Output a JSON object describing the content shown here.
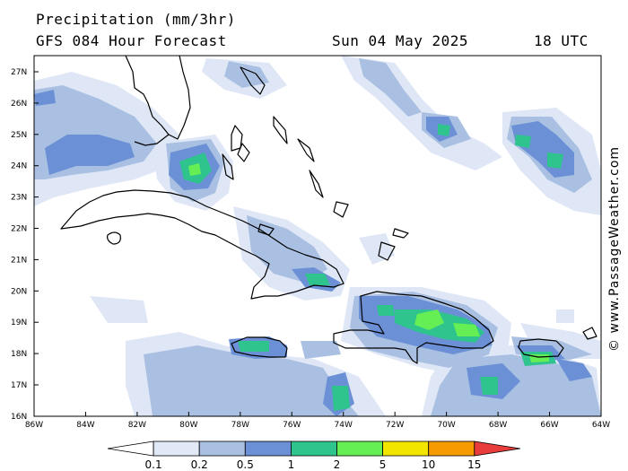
{
  "header": {
    "title": "Precipitation (mm/3hr)",
    "subtitle": "GFS 084 Hour Forecast",
    "date": "Sun 04 May 2025",
    "time": "18 UTC"
  },
  "credit": "© www.PassageWeather.com",
  "axes": {
    "lat_labels": [
      "27N",
      "26N",
      "25N",
      "24N",
      "23N",
      "22N",
      "21N",
      "20N",
      "19N",
      "18N",
      "17N",
      "16N"
    ],
    "lon_labels": [
      "86W",
      "84W",
      "82W",
      "80W",
      "78W",
      "76W",
      "74W",
      "72W",
      "70W",
      "68W",
      "66W",
      "64W"
    ]
  },
  "colorbar": {
    "labels": [
      "0.1",
      "0.2",
      "0.5",
      "1",
      "2",
      "5",
      "10",
      "15"
    ],
    "colors": [
      "#ffffff",
      "#e1e9f6",
      "#a9c0e2",
      "#6b90d6",
      "#2fc48e",
      "#66ee55",
      "#f2e600",
      "#f59a00",
      "#e83c3c"
    ]
  },
  "colors": {
    "light": "#dfe7f6",
    "medium": "#a9c0e2",
    "blue": "#6b90d6",
    "teal": "#2fc48e",
    "green": "#66ee55"
  }
}
